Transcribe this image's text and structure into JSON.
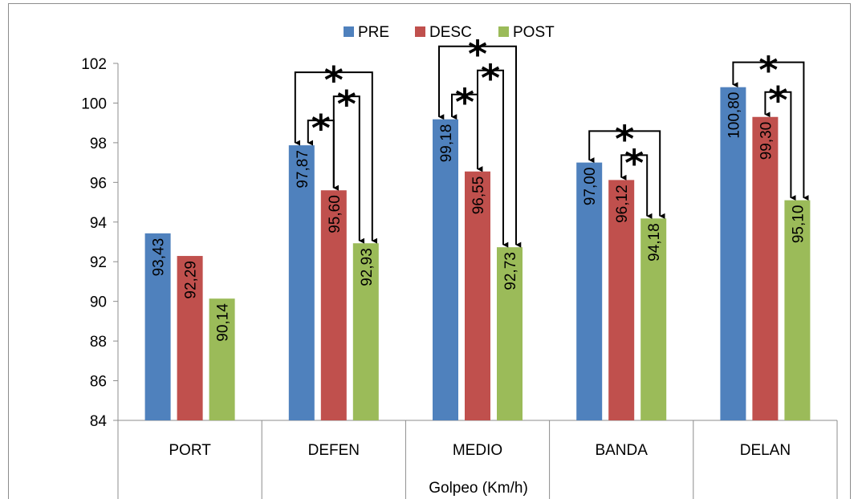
{
  "chart_data": {
    "type": "bar",
    "categories": [
      "PORT",
      "DEFEN",
      "MEDIO",
      "BANDA",
      "DELAN"
    ],
    "series": [
      {
        "name": "PRE",
        "values": [
          93.43,
          97.87,
          99.18,
          97.0,
          100.8
        ],
        "labels": [
          "93,43",
          "97,87",
          "99,18",
          "97,00",
          "100,80"
        ]
      },
      {
        "name": "DESC",
        "values": [
          92.29,
          95.6,
          96.55,
          96.12,
          99.3
        ],
        "labels": [
          "92,29",
          "95,60",
          "96,55",
          "96,12",
          "99,30"
        ]
      },
      {
        "name": "POST",
        "values": [
          90.14,
          92.93,
          92.73,
          94.18,
          95.1
        ],
        "labels": [
          "90,14",
          "92,93",
          "92,73",
          "94,18",
          "95,10"
        ]
      }
    ],
    "xlabel": "Golpeo (Km/h)",
    "ylabel": "",
    "ylim": [
      84,
      102
    ],
    "yticks": [
      84,
      86,
      88,
      90,
      92,
      94,
      96,
      98,
      100,
      102
    ],
    "grid": false,
    "legend_position": "top",
    "colors": {
      "PRE": "#4F81BD",
      "DESC": "#C0504D",
      "POST": "#9BBB59"
    },
    "significance_marker": "*",
    "significance": [
      {
        "category": "DEFEN",
        "from": "PRE",
        "to": "DESC"
      },
      {
        "category": "DEFEN",
        "from": "DESC",
        "to": "POST"
      },
      {
        "category": "DEFEN",
        "from": "PRE",
        "to": "POST"
      },
      {
        "category": "MEDIO",
        "from": "PRE",
        "to": "DESC"
      },
      {
        "category": "MEDIO",
        "from": "DESC",
        "to": "POST"
      },
      {
        "category": "MEDIO",
        "from": "PRE",
        "to": "POST"
      },
      {
        "category": "BANDA",
        "from": "DESC",
        "to": "POST"
      },
      {
        "category": "BANDA",
        "from": "PRE",
        "to": "POST"
      },
      {
        "category": "DELAN",
        "from": "DESC",
        "to": "POST"
      },
      {
        "category": "DELAN",
        "from": "PRE",
        "to": "POST"
      }
    ]
  }
}
